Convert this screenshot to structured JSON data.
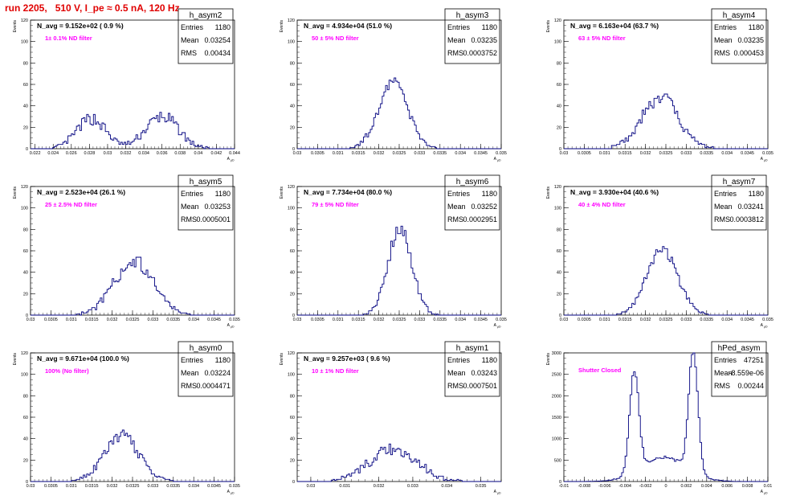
{
  "page_title": "run 2205,   510 V, I_pe ≈ 0.5 nA, 120 Hz",
  "colors": {
    "histogram": "#00007f",
    "annotation": "#ff00ff",
    "title": "#e00000",
    "frame": "#000000"
  },
  "chart_data": [
    {
      "type": "histogram",
      "name": "h_asym2",
      "ylabel": "Events",
      "xlabel": "A_{μD}",
      "xlim": [
        0.0215,
        0.044
      ],
      "ylim": [
        0,
        120
      ],
      "xticks": [
        0.022,
        0.024,
        0.026,
        0.028,
        0.03,
        0.032,
        0.034,
        0.036,
        0.038,
        0.04,
        0.042,
        0.044
      ],
      "xtick_labels": [
        "0.022",
        "0.024",
        "0.026",
        "0.028",
        "0.03",
        "0.032",
        "0.034",
        "0.036",
        "0.038",
        "0.04",
        "0.042",
        "0.044"
      ],
      "yticks": [
        0,
        20,
        40,
        60,
        80,
        100,
        120
      ],
      "ytick_labels": [
        "0",
        "20",
        "40",
        "60",
        "80",
        "100",
        "120"
      ],
      "nbins": 120,
      "shape": "bimodal",
      "n_avg_text": "N_avg = 9.152e+02 ( 0.9 %)",
      "filter_text": "1± 0.1% ND filter",
      "stats": {
        "entries": "1180",
        "mean": "0.03254",
        "rms": "0.00434"
      }
    },
    {
      "type": "histogram",
      "name": "h_asym3",
      "ylabel": "Events",
      "xlabel": "A_{μD}",
      "xlim": [
        0.03,
        0.035
      ],
      "ylim": [
        0,
        120
      ],
      "xticks": [
        0.03,
        0.0305,
        0.031,
        0.0315,
        0.032,
        0.0325,
        0.033,
        0.0335,
        0.034,
        0.0345,
        0.035
      ],
      "xtick_labels": [
        "0.03",
        "0.0305",
        "0.031",
        "0.0315",
        "0.032",
        "0.0325",
        "0.033",
        "0.0335",
        "0.034",
        "0.0345",
        "0.035"
      ],
      "yticks": [
        0,
        20,
        40,
        60,
        80,
        100,
        120
      ],
      "ytick_labels": [
        "0",
        "20",
        "40",
        "60",
        "80",
        "100",
        "120"
      ],
      "nbins": 120,
      "shape": "gauss",
      "n_avg_text": "N_avg = 4.934e+04 (51.0 %)",
      "filter_text": "50 ± 5% ND filter",
      "stats": {
        "entries": "1180",
        "mean": "0.03235",
        "rms": "0.0003752"
      }
    },
    {
      "type": "histogram",
      "name": "h_asym4",
      "ylabel": "Events",
      "xlabel": "A_{μD}",
      "xlim": [
        0.03,
        0.035
      ],
      "ylim": [
        0,
        120
      ],
      "xticks": [
        0.03,
        0.0305,
        0.031,
        0.0315,
        0.032,
        0.0325,
        0.033,
        0.0335,
        0.034,
        0.0345,
        0.035
      ],
      "xtick_labels": [
        "0.03",
        "0.0305",
        "0.031",
        "0.0315",
        "0.032",
        "0.0325",
        "0.033",
        "0.0335",
        "0.034",
        "0.0345",
        "0.035"
      ],
      "yticks": [
        0,
        20,
        40,
        60,
        80,
        100,
        120
      ],
      "ytick_labels": [
        "0",
        "20",
        "40",
        "60",
        "80",
        "100",
        "120"
      ],
      "nbins": 120,
      "shape": "gauss",
      "n_avg_text": "N_avg = 6.163e+04 (63.7 %)",
      "filter_text": "63 ± 5% ND filter",
      "stats": {
        "entries": "1180",
        "mean": "0.03235",
        "rms": "0.000453"
      }
    },
    {
      "type": "histogram",
      "name": "h_asym5",
      "ylabel": "Events",
      "xlabel": "A_{μD}",
      "xlim": [
        0.03,
        0.035
      ],
      "ylim": [
        0,
        120
      ],
      "xticks": [
        0.03,
        0.0305,
        0.031,
        0.0315,
        0.032,
        0.0325,
        0.033,
        0.0335,
        0.034,
        0.0345,
        0.035
      ],
      "xtick_labels": [
        "0.03",
        "0.0305",
        "0.031",
        "0.0315",
        "0.032",
        "0.0325",
        "0.033",
        "0.0335",
        "0.034",
        "0.0345",
        "0.035"
      ],
      "yticks": [
        0,
        20,
        40,
        60,
        80,
        100,
        120
      ],
      "ytick_labels": [
        "0",
        "20",
        "40",
        "60",
        "80",
        "100",
        "120"
      ],
      "nbins": 120,
      "shape": "gauss",
      "n_avg_text": "N_avg = 2.523e+04 (26.1 %)",
      "filter_text": "25 ± 2.5% ND filter",
      "stats": {
        "entries": "1180",
        "mean": "0.03253",
        "rms": "0.0005001"
      }
    },
    {
      "type": "histogram",
      "name": "h_asym6",
      "ylabel": "Events",
      "xlabel": "A_{μD}",
      "xlim": [
        0.03,
        0.035
      ],
      "ylim": [
        0,
        120
      ],
      "xticks": [
        0.03,
        0.0305,
        0.031,
        0.0315,
        0.032,
        0.0325,
        0.033,
        0.0335,
        0.034,
        0.0345,
        0.035
      ],
      "xtick_labels": [
        "0.03",
        "0.0305",
        "0.031",
        "0.0315",
        "0.032",
        "0.0325",
        "0.033",
        "0.0335",
        "0.034",
        "0.0345",
        "0.035"
      ],
      "yticks": [
        0,
        20,
        40,
        60,
        80,
        100,
        120
      ],
      "ytick_labels": [
        "0",
        "20",
        "40",
        "60",
        "80",
        "100",
        "120"
      ],
      "nbins": 120,
      "shape": "gauss",
      "n_avg_text": "N_avg = 7.734e+04 (80.0 %)",
      "filter_text": "79 ± 5% ND filter",
      "stats": {
        "entries": "1180",
        "mean": "0.03252",
        "rms": "0.0002951"
      }
    },
    {
      "type": "histogram",
      "name": "h_asym7",
      "ylabel": "Events",
      "xlabel": "A_{μD}",
      "xlim": [
        0.03,
        0.035
      ],
      "ylim": [
        0,
        120
      ],
      "xticks": [
        0.03,
        0.0305,
        0.031,
        0.0315,
        0.032,
        0.0325,
        0.033,
        0.0335,
        0.034,
        0.0345,
        0.035
      ],
      "xtick_labels": [
        "0.03",
        "0.0305",
        "0.031",
        "0.0315",
        "0.032",
        "0.0325",
        "0.033",
        "0.0335",
        "0.034",
        "0.0345",
        "0.035"
      ],
      "yticks": [
        0,
        20,
        40,
        60,
        80,
        100,
        120
      ],
      "ytick_labels": [
        "0",
        "20",
        "40",
        "60",
        "80",
        "100",
        "120"
      ],
      "nbins": 120,
      "shape": "gauss",
      "n_avg_text": "N_avg = 3.930e+04 (40.6 %)",
      "filter_text": "40 ± 4% ND filter",
      "stats": {
        "entries": "1180",
        "mean": "0.03241",
        "rms": "0.0003812"
      }
    },
    {
      "type": "histogram",
      "name": "h_asym0",
      "ylabel": "Events",
      "xlabel": "A_{μD}",
      "xlim": [
        0.03,
        0.035
      ],
      "ylim": [
        0,
        120
      ],
      "xticks": [
        0.03,
        0.0305,
        0.031,
        0.0315,
        0.032,
        0.0325,
        0.033,
        0.0335,
        0.034,
        0.0345,
        0.035
      ],
      "xtick_labels": [
        "0.03",
        "0.0305",
        "0.031",
        "0.0315",
        "0.032",
        "0.0325",
        "0.033",
        "0.0335",
        "0.034",
        "0.0345",
        "0.035"
      ],
      "yticks": [
        0,
        20,
        40,
        60,
        80,
        100,
        120
      ],
      "ytick_labels": [
        "0",
        "20",
        "40",
        "60",
        "80",
        "100",
        "120"
      ],
      "nbins": 120,
      "shape": "gauss",
      "n_avg_text": "N_avg = 9.671e+04 (100.0 %)",
      "filter_text": "100% (No filter)",
      "stats": {
        "entries": "1180",
        "mean": "0.03224",
        "rms": "0.0004471"
      }
    },
    {
      "type": "histogram",
      "name": "h_asym1",
      "ylabel": "Events",
      "xlabel": "A_{μD}",
      "xlim": [
        0.0296,
        0.0356
      ],
      "ylim": [
        0,
        120
      ],
      "xticks": [
        0.03,
        0.031,
        0.032,
        0.033,
        0.034,
        0.035
      ],
      "xtick_labels": [
        "0.03",
        "0.031",
        "0.032",
        "0.033",
        "0.034",
        "0.035"
      ],
      "yticks": [
        0,
        20,
        40,
        60,
        80,
        100,
        120
      ],
      "ytick_labels": [
        "0",
        "20",
        "40",
        "60",
        "80",
        "100",
        "120"
      ],
      "nbins": 120,
      "shape": "gauss",
      "n_avg_text": "N_avg = 9.257e+03 ( 9.6 %)",
      "filter_text": "10 ± 1% ND filter",
      "stats": {
        "entries": "1180",
        "mean": "0.03243",
        "rms": "0.0007501"
      }
    },
    {
      "type": "histogram",
      "name": "hPed_asym",
      "ylabel": "Events",
      "xlabel": "A_{μD}",
      "xlim": [
        -0.01,
        0.01
      ],
      "ylim": [
        0,
        3000
      ],
      "xticks": [
        -0.01,
        -0.008,
        -0.006,
        -0.004,
        -0.002,
        0,
        0.002,
        0.004,
        0.006,
        0.008,
        0.01
      ],
      "xtick_labels": [
        "-0.01",
        "-0.008",
        "-0.006",
        "-0.004",
        "-0.002",
        "0",
        "0.002",
        "0.004",
        "0.006",
        "0.008",
        "0.01"
      ],
      "yticks": [
        0,
        500,
        1000,
        1500,
        2000,
        2500,
        3000
      ],
      "ytick_labels": [
        "0",
        "500",
        "1000",
        "1500",
        "2000",
        "2500",
        "3000"
      ],
      "nbins": 120,
      "shape": "pedestal",
      "n_avg_text": "",
      "filter_text": "Shutter Closed",
      "stats": {
        "entries": "47251",
        "mean": "-8.559e-06",
        "rms": "0.00244"
      }
    }
  ],
  "stat_labels": {
    "entries": "Entries",
    "mean": "Mean",
    "rms": "RMS"
  }
}
